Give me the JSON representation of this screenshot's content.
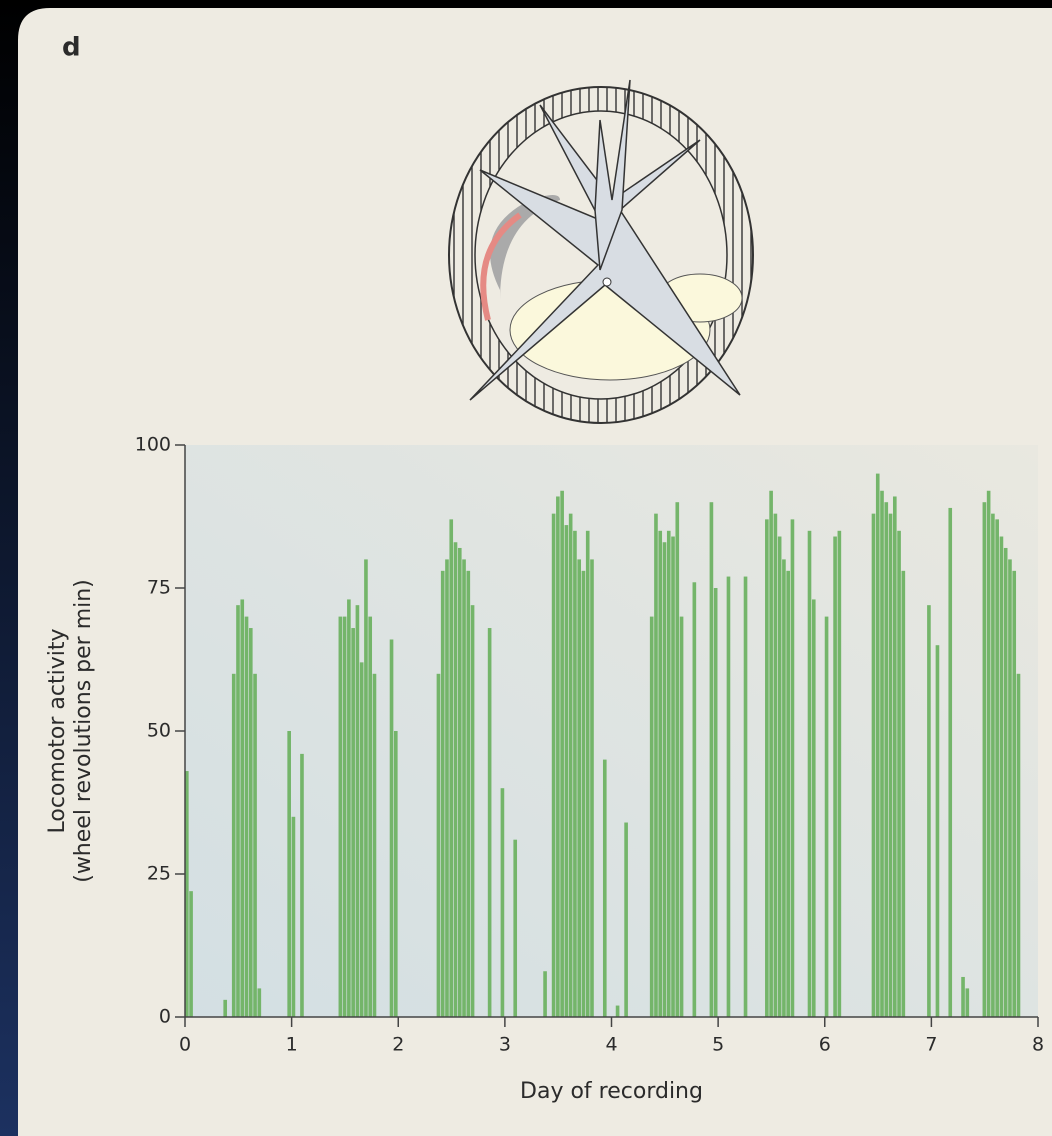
{
  "panel_label": "d",
  "chart_data": {
    "type": "bar",
    "xlabel": "Day of recording",
    "ylabel": [
      "Locomotor activity",
      "(wheel revolutions per min)"
    ],
    "color": "#74b56a",
    "xlim": [
      0,
      8
    ],
    "xticks": [
      0,
      1,
      2,
      3,
      4,
      5,
      6,
      7,
      8
    ],
    "ylim": [
      0,
      100
    ],
    "yticks": [
      0,
      25,
      50,
      75,
      100
    ],
    "x": [
      0,
      0.04,
      0.08,
      0.12,
      0.16,
      0.2,
      0.24,
      0.28,
      0.32,
      0.36,
      0.4,
      0.44,
      0.48,
      0.52,
      0.56,
      0.6,
      0.64,
      0.68,
      0.72,
      0.76,
      0.8,
      0.84,
      0.88,
      0.92,
      0.96,
      1,
      1.04,
      1.08,
      1.12,
      1.16,
      1.2,
      1.24,
      1.28,
      1.32,
      1.36,
      1.4,
      1.44,
      1.48,
      1.52,
      1.56,
      1.6,
      1.64,
      1.68,
      1.72,
      1.76,
      1.8,
      1.84,
      1.88,
      1.92,
      1.96,
      2,
      2.04,
      2.08,
      2.12,
      2.16,
      2.2,
      2.24,
      2.28,
      2.32,
      2.36,
      2.4,
      2.44,
      2.48,
      2.52,
      2.56,
      2.6,
      2.64,
      2.68,
      2.72,
      2.76,
      2.8,
      2.84,
      2.88,
      2.92,
      2.96,
      3,
      3.04,
      3.08,
      3.12,
      3.16,
      3.2,
      3.24,
      3.28,
      3.32,
      3.36,
      3.4,
      3.44,
      3.48,
      3.52,
      3.56,
      3.6,
      3.64,
      3.68,
      3.72,
      3.76,
      3.8,
      3.84,
      3.88,
      3.92,
      3.96,
      4,
      4.04,
      4.08,
      4.12,
      4.16,
      4.2,
      4.24,
      4.28,
      4.32,
      4.36,
      4.4,
      4.44,
      4.48,
      4.52,
      4.56,
      4.6,
      4.64,
      4.68,
      4.72,
      4.76,
      4.8,
      4.84,
      4.88,
      4.92,
      4.96,
      5,
      5.04,
      5.08,
      5.12,
      5.16,
      5.2,
      5.24,
      5.28,
      5.32,
      5.36,
      5.4,
      5.44,
      5.48,
      5.52,
      5.56,
      5.6,
      5.64,
      5.68,
      5.72,
      5.76,
      5.8,
      5.84,
      5.88,
      5.92,
      5.96,
      6,
      6.04,
      6.08,
      6.12,
      6.16,
      6.2,
      6.24,
      6.28,
      6.32,
      6.36,
      6.4,
      6.44,
      6.48,
      6.52,
      6.56,
      6.6,
      6.64,
      6.68,
      6.72,
      6.76,
      6.8,
      6.84,
      6.88,
      6.92,
      6.96,
      7,
      7.04,
      7.08,
      7.12,
      7.16,
      7.2,
      7.24,
      7.28,
      7.32,
      7.36,
      7.4,
      7.44,
      7.48,
      7.52,
      7.56,
      7.6,
      7.64,
      7.68,
      7.72,
      7.76,
      7.8,
      7.84,
      7.88,
      7.92,
      7.96
    ],
    "values": [
      43,
      22,
      0,
      0,
      0,
      0,
      0,
      0,
      0,
      3,
      0,
      60,
      72,
      73,
      70,
      68,
      60,
      5,
      0,
      0,
      0,
      0,
      0,
      0,
      50,
      35,
      0,
      46,
      0,
      0,
      0,
      0,
      0,
      0,
      0,
      0,
      70,
      70,
      73,
      68,
      72,
      62,
      80,
      70,
      60,
      0,
      0,
      0,
      66,
      50,
      0,
      0,
      0,
      0,
      0,
      0,
      0,
      0,
      0,
      60,
      78,
      80,
      87,
      83,
      82,
      80,
      78,
      72,
      0,
      0,
      0,
      68,
      0,
      0,
      40,
      0,
      0,
      31,
      0,
      0,
      0,
      0,
      0,
      0,
      8,
      0,
      88,
      91,
      92,
      86,
      88,
      85,
      80,
      78,
      85,
      80,
      0,
      0,
      45,
      0,
      0,
      2,
      0,
      34,
      0,
      0,
      0,
      0,
      0,
      70,
      88,
      85,
      83,
      85,
      84,
      90,
      70,
      0,
      0,
      76,
      0,
      0,
      0,
      90,
      75,
      0,
      0,
      77,
      0,
      0,
      0,
      77,
      0,
      0,
      0,
      0,
      87,
      92,
      88,
      84,
      80,
      78,
      87,
      0,
      0,
      0,
      85,
      73,
      0,
      0,
      70,
      0,
      84,
      85,
      0,
      0,
      0,
      0,
      0,
      0,
      0,
      88,
      95,
      92,
      90,
      88,
      91,
      85,
      78,
      0,
      0,
      0,
      0,
      0,
      72,
      0,
      65,
      0,
      0,
      89,
      0,
      0,
      7,
      5,
      0,
      0,
      0,
      90,
      92,
      88,
      87,
      84,
      82,
      80,
      78,
      60,
      0,
      0,
      0,
      0
    ]
  }
}
